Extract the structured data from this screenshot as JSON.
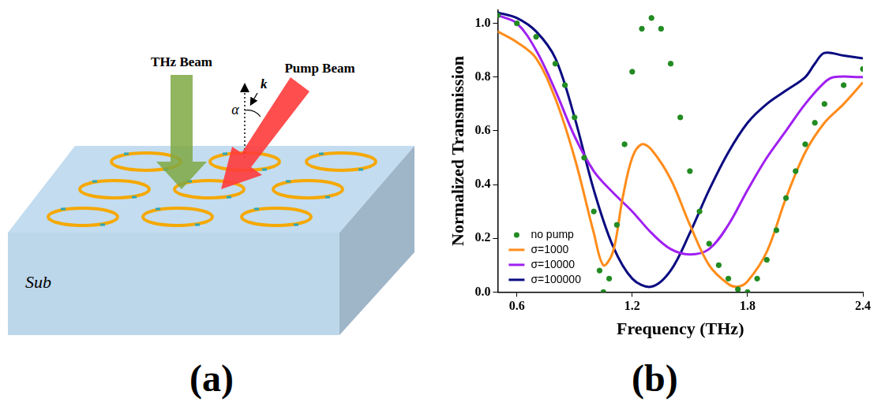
{
  "diagram": {
    "label": "(a)",
    "thz_beam": "THz Beam",
    "pump_beam": "Pump Beam",
    "wave_vector": "k",
    "angle": "α",
    "substrate": "Sub"
  },
  "chart_label": "(b)",
  "chart_data": {
    "type": "line",
    "x_label": "Frequency (THz)",
    "y_label": "Normalized Transmission",
    "xlim": [
      0.5,
      2.4
    ],
    "ylim": [
      0,
      1.05
    ],
    "xticks": [
      0.6,
      1.2,
      1.8,
      2.4
    ],
    "yticks": [
      {
        "value": 0,
        "label": "0.0"
      },
      0.2,
      0.4,
      0.6,
      0.8,
      {
        "value": 1,
        "label": "1.0"
      }
    ],
    "grid": false,
    "legend": "lower left",
    "series": [
      {
        "name": "no pump",
        "color": "#228b22",
        "type": "scatter",
        "marker": "circle",
        "x": [
          0.5,
          0.6,
          0.7,
          0.8,
          0.85,
          0.9,
          0.95,
          1.0,
          1.03,
          1.05,
          1.08,
          1.12,
          1.16,
          1.2,
          1.25,
          1.3,
          1.35,
          1.4,
          1.45,
          1.5,
          1.55,
          1.6,
          1.65,
          1.7,
          1.75,
          1.8,
          1.85,
          1.9,
          1.95,
          2.0,
          2.05,
          2.1,
          2.15,
          2.2,
          2.3,
          2.4
        ],
        "values": [
          1.03,
          1.0,
          0.95,
          0.85,
          0.77,
          0.65,
          0.5,
          0.3,
          0.08,
          0.0,
          0.05,
          0.25,
          0.55,
          0.82,
          0.98,
          1.02,
          0.98,
          0.85,
          0.65,
          0.45,
          0.3,
          0.18,
          0.1,
          0.05,
          0.01,
          0.0,
          0.05,
          0.12,
          0.23,
          0.35,
          0.45,
          0.55,
          0.63,
          0.7,
          0.77,
          0.83
        ]
      },
      {
        "name": "σ=1000",
        "color": "#ff8c1a",
        "type": "line",
        "line_style": "solid",
        "x": [
          0.5,
          0.6,
          0.7,
          0.8,
          0.9,
          1.0,
          1.05,
          1.1,
          1.15,
          1.2,
          1.25,
          1.3,
          1.4,
          1.5,
          1.6,
          1.7,
          1.75,
          1.8,
          1.9,
          2.0,
          2.1,
          2.2,
          2.3,
          2.4
        ],
        "values": [
          0.97,
          0.93,
          0.87,
          0.72,
          0.5,
          0.22,
          0.1,
          0.15,
          0.35,
          0.5,
          0.55,
          0.53,
          0.42,
          0.25,
          0.1,
          0.03,
          0.02,
          0.04,
          0.15,
          0.35,
          0.52,
          0.63,
          0.7,
          0.78
        ]
      },
      {
        "name": "σ=10000",
        "color": "#a020f0",
        "type": "line",
        "line_style": "solid",
        "x": [
          0.5,
          0.6,
          0.7,
          0.8,
          0.9,
          1.0,
          1.1,
          1.2,
          1.3,
          1.4,
          1.5,
          1.6,
          1.7,
          1.8,
          1.9,
          2.0,
          2.1,
          2.2,
          2.25,
          2.4
        ],
        "values": [
          1.03,
          1.0,
          0.9,
          0.75,
          0.58,
          0.45,
          0.37,
          0.3,
          0.22,
          0.16,
          0.14,
          0.16,
          0.25,
          0.38,
          0.5,
          0.6,
          0.7,
          0.78,
          0.8,
          0.8
        ]
      },
      {
        "name": "σ=100000",
        "color": "#0a0a80",
        "type": "line",
        "line_style": "solid",
        "x": [
          0.5,
          0.6,
          0.7,
          0.8,
          0.9,
          1.0,
          1.1,
          1.2,
          1.3,
          1.4,
          1.5,
          1.6,
          1.7,
          1.8,
          1.9,
          2.0,
          2.1,
          2.15,
          2.2,
          2.3,
          2.4
        ],
        "values": [
          1.04,
          1.02,
          0.97,
          0.87,
          0.65,
          0.38,
          0.17,
          0.05,
          0.02,
          0.08,
          0.22,
          0.38,
          0.52,
          0.63,
          0.7,
          0.75,
          0.8,
          0.85,
          0.89,
          0.88,
          0.87
        ]
      }
    ]
  }
}
